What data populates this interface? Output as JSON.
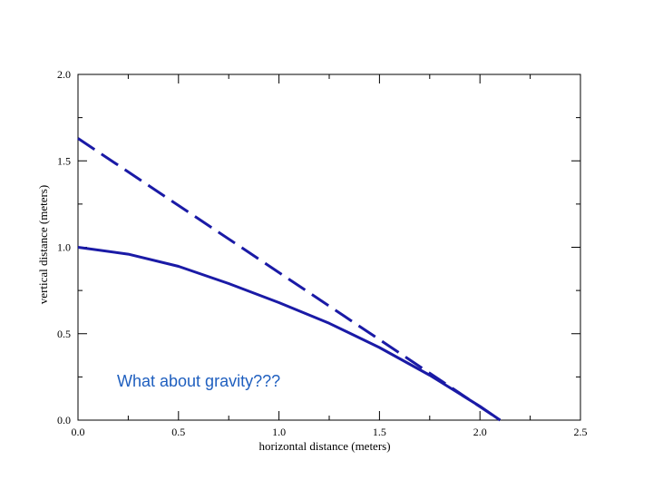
{
  "chart_data": {
    "type": "line",
    "xlabel": "horizontal distance (meters)",
    "ylabel": "vertical distance (meters)",
    "xlim": [
      0,
      2.5
    ],
    "ylim": [
      0,
      2.0
    ],
    "xticks": [
      "0.0",
      "0.5",
      "1.0",
      "1.5",
      "2.0",
      "2.5"
    ],
    "yticks": [
      "0.0",
      "0.5",
      "1.0",
      "1.5",
      "2.0"
    ],
    "grid": false,
    "annotation": "What about gravity???",
    "series": [
      {
        "style": "dashed",
        "x": [
          0.0,
          2.1
        ],
        "y": [
          1.63,
          0.0
        ]
      },
      {
        "style": "solid",
        "x": [
          0.0,
          0.25,
          0.5,
          0.75,
          1.0,
          1.25,
          1.5,
          1.75,
          2.0,
          2.1
        ],
        "y": [
          1.0,
          0.96,
          0.89,
          0.79,
          0.68,
          0.56,
          0.42,
          0.26,
          0.08,
          0.0
        ]
      }
    ]
  },
  "colors": {
    "line": "#1a1aa6",
    "annotation": "#1f5fbf",
    "axis": "#000000"
  }
}
